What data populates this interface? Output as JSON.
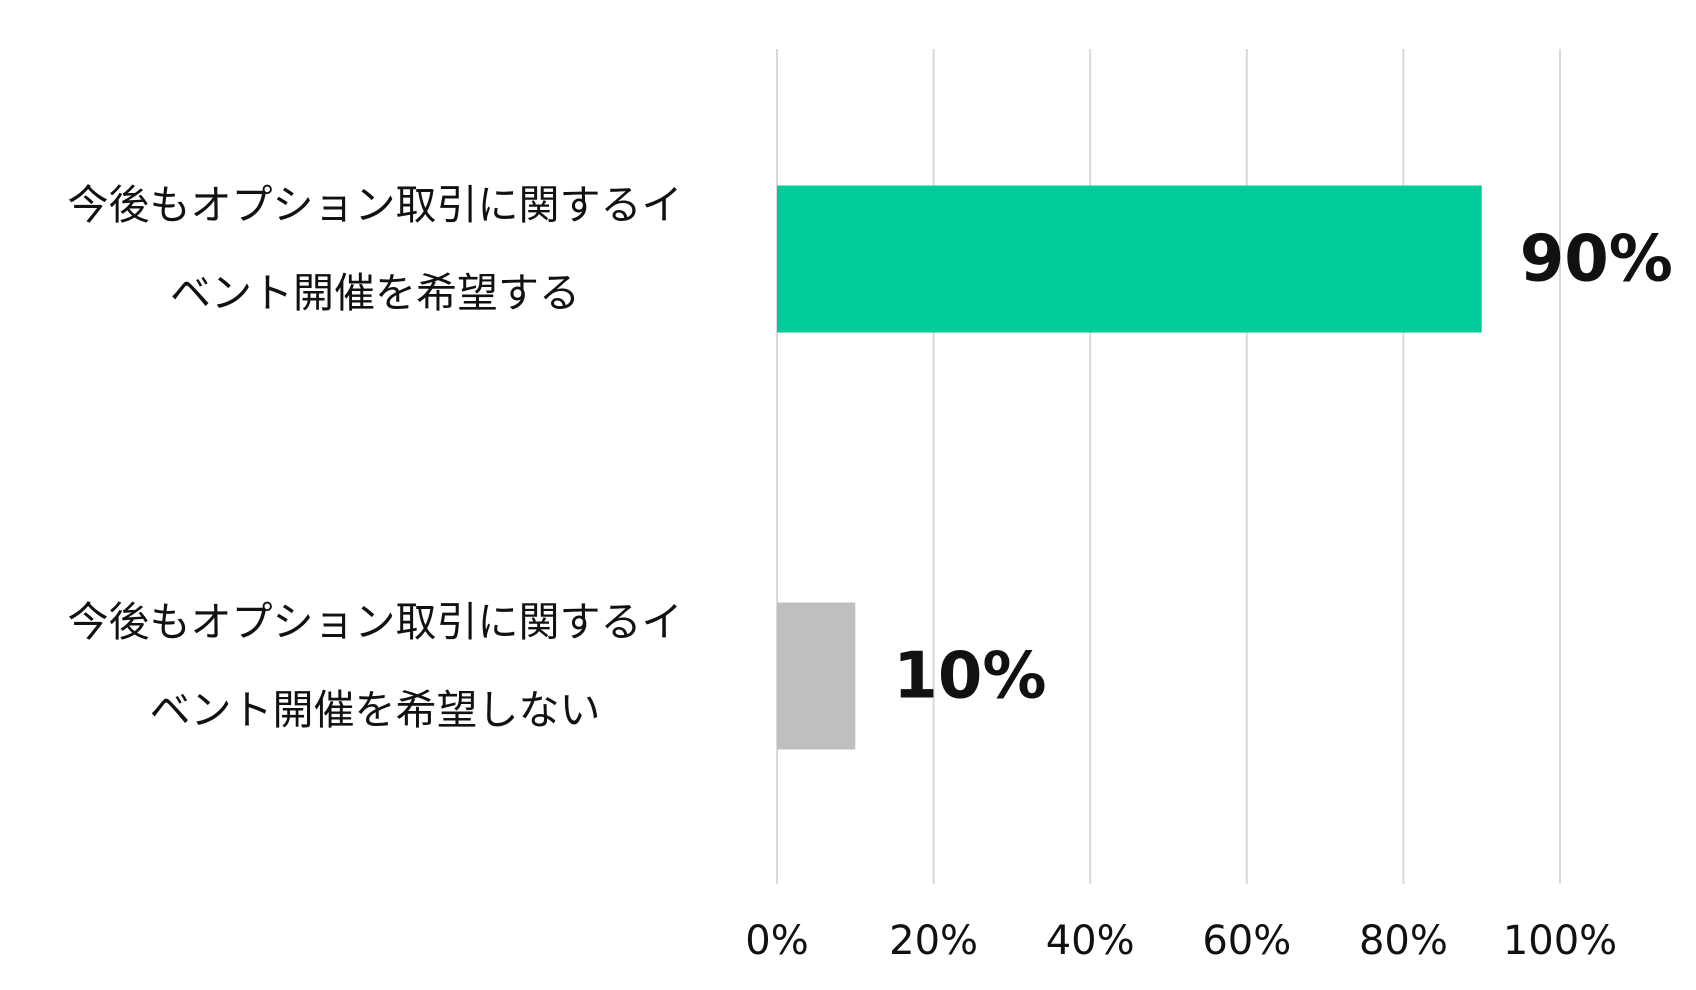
{
  "chart_data": {
    "type": "barh",
    "categories": [
      "今後もオプション取引に関するイベント開催を希望する",
      "今後もオプション取引に関するイベント開催を希望しない"
    ],
    "values": [
      90,
      10
    ],
    "value_labels": [
      "90%",
      "10%"
    ],
    "colors": [
      "#00cc99",
      "#bfbfbf"
    ],
    "xlim": [
      0,
      100
    ],
    "xticks": [
      {
        "value": 0,
        "label": "0%"
      },
      {
        "value": 20,
        "label": "20%"
      },
      {
        "value": 40,
        "label": "40%"
      },
      {
        "value": 60,
        "label": "60%"
      },
      {
        "value": 80,
        "label": "80%"
      },
      {
        "value": 100,
        "label": "100%"
      }
    ],
    "grid": true
  }
}
